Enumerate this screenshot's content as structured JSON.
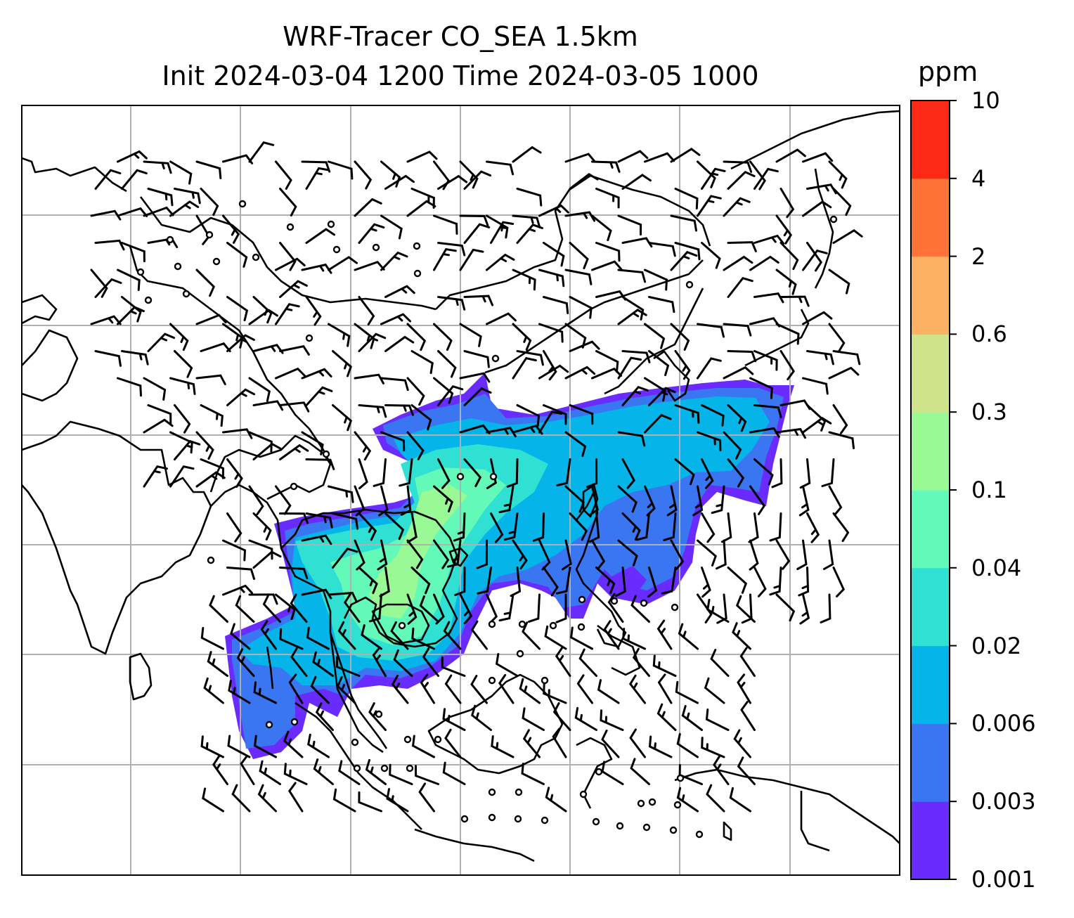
{
  "title": {
    "line1": "WRF-Tracer CO_SEA 1.5km",
    "line2": "Init 2024-03-04 1200 Time 2024-03-05 1000"
  },
  "colorbar": {
    "unit": "ppm",
    "levels": [
      "0.001",
      "0.003",
      "0.006",
      "0.02",
      "0.04",
      "0.1",
      "0.3",
      "0.6",
      "2",
      "4",
      "10"
    ],
    "colors": [
      "#6a2bff",
      "#3a75f2",
      "#05b4e8",
      "#2fe0d3",
      "#63f9b8",
      "#98f995",
      "#cfe38a",
      "#fdb163",
      "#ff7238",
      "#ff2a15"
    ]
  },
  "map": {
    "grid": true,
    "wind_barbs": true,
    "calm_markers": true
  }
}
